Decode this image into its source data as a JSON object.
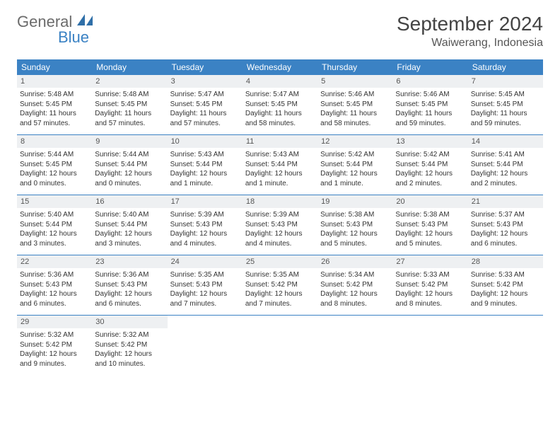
{
  "brand": {
    "general": "General",
    "blue": "Blue",
    "icon_color": "#2f6fa8"
  },
  "title": "September 2024",
  "location": "Waiwerang, Indonesia",
  "colors": {
    "header_bg": "#3b82c4",
    "header_text": "#ffffff",
    "daynum_bg": "#eef0f2",
    "week_border": "#3b82c4",
    "body_text": "#333333"
  },
  "weekdays": [
    "Sunday",
    "Monday",
    "Tuesday",
    "Wednesday",
    "Thursday",
    "Friday",
    "Saturday"
  ],
  "days": [
    {
      "n": 1,
      "sunrise": "5:48 AM",
      "sunset": "5:45 PM",
      "daylight": "11 hours and 57 minutes."
    },
    {
      "n": 2,
      "sunrise": "5:48 AM",
      "sunset": "5:45 PM",
      "daylight": "11 hours and 57 minutes."
    },
    {
      "n": 3,
      "sunrise": "5:47 AM",
      "sunset": "5:45 PM",
      "daylight": "11 hours and 57 minutes."
    },
    {
      "n": 4,
      "sunrise": "5:47 AM",
      "sunset": "5:45 PM",
      "daylight": "11 hours and 58 minutes."
    },
    {
      "n": 5,
      "sunrise": "5:46 AM",
      "sunset": "5:45 PM",
      "daylight": "11 hours and 58 minutes."
    },
    {
      "n": 6,
      "sunrise": "5:46 AM",
      "sunset": "5:45 PM",
      "daylight": "11 hours and 59 minutes."
    },
    {
      "n": 7,
      "sunrise": "5:45 AM",
      "sunset": "5:45 PM",
      "daylight": "11 hours and 59 minutes."
    },
    {
      "n": 8,
      "sunrise": "5:44 AM",
      "sunset": "5:45 PM",
      "daylight": "12 hours and 0 minutes."
    },
    {
      "n": 9,
      "sunrise": "5:44 AM",
      "sunset": "5:44 PM",
      "daylight": "12 hours and 0 minutes."
    },
    {
      "n": 10,
      "sunrise": "5:43 AM",
      "sunset": "5:44 PM",
      "daylight": "12 hours and 1 minute."
    },
    {
      "n": 11,
      "sunrise": "5:43 AM",
      "sunset": "5:44 PM",
      "daylight": "12 hours and 1 minute."
    },
    {
      "n": 12,
      "sunrise": "5:42 AM",
      "sunset": "5:44 PM",
      "daylight": "12 hours and 1 minute."
    },
    {
      "n": 13,
      "sunrise": "5:42 AM",
      "sunset": "5:44 PM",
      "daylight": "12 hours and 2 minutes."
    },
    {
      "n": 14,
      "sunrise": "5:41 AM",
      "sunset": "5:44 PM",
      "daylight": "12 hours and 2 minutes."
    },
    {
      "n": 15,
      "sunrise": "5:40 AM",
      "sunset": "5:44 PM",
      "daylight": "12 hours and 3 minutes."
    },
    {
      "n": 16,
      "sunrise": "5:40 AM",
      "sunset": "5:44 PM",
      "daylight": "12 hours and 3 minutes."
    },
    {
      "n": 17,
      "sunrise": "5:39 AM",
      "sunset": "5:43 PM",
      "daylight": "12 hours and 4 minutes."
    },
    {
      "n": 18,
      "sunrise": "5:39 AM",
      "sunset": "5:43 PM",
      "daylight": "12 hours and 4 minutes."
    },
    {
      "n": 19,
      "sunrise": "5:38 AM",
      "sunset": "5:43 PM",
      "daylight": "12 hours and 5 minutes."
    },
    {
      "n": 20,
      "sunrise": "5:38 AM",
      "sunset": "5:43 PM",
      "daylight": "12 hours and 5 minutes."
    },
    {
      "n": 21,
      "sunrise": "5:37 AM",
      "sunset": "5:43 PM",
      "daylight": "12 hours and 6 minutes."
    },
    {
      "n": 22,
      "sunrise": "5:36 AM",
      "sunset": "5:43 PM",
      "daylight": "12 hours and 6 minutes."
    },
    {
      "n": 23,
      "sunrise": "5:36 AM",
      "sunset": "5:43 PM",
      "daylight": "12 hours and 6 minutes."
    },
    {
      "n": 24,
      "sunrise": "5:35 AM",
      "sunset": "5:43 PM",
      "daylight": "12 hours and 7 minutes."
    },
    {
      "n": 25,
      "sunrise": "5:35 AM",
      "sunset": "5:42 PM",
      "daylight": "12 hours and 7 minutes."
    },
    {
      "n": 26,
      "sunrise": "5:34 AM",
      "sunset": "5:42 PM",
      "daylight": "12 hours and 8 minutes."
    },
    {
      "n": 27,
      "sunrise": "5:33 AM",
      "sunset": "5:42 PM",
      "daylight": "12 hours and 8 minutes."
    },
    {
      "n": 28,
      "sunrise": "5:33 AM",
      "sunset": "5:42 PM",
      "daylight": "12 hours and 9 minutes."
    },
    {
      "n": 29,
      "sunrise": "5:32 AM",
      "sunset": "5:42 PM",
      "daylight": "12 hours and 9 minutes."
    },
    {
      "n": 30,
      "sunrise": "5:32 AM",
      "sunset": "5:42 PM",
      "daylight": "12 hours and 10 minutes."
    }
  ],
  "labels": {
    "sunrise": "Sunrise: ",
    "sunset": "Sunset: ",
    "daylight": "Daylight: "
  },
  "layout": {
    "start_offset": 0,
    "cols": 7
  }
}
